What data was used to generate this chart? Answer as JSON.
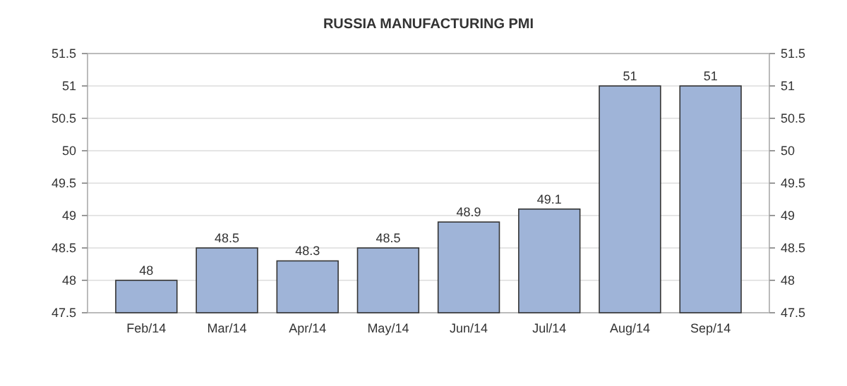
{
  "chart_data": {
    "type": "bar",
    "title": "RUSSIA MANUFACTURING PMI",
    "categories": [
      "Feb/14",
      "Mar/14",
      "Apr/14",
      "May/14",
      "Jun/14",
      "Jul/14",
      "Aug/14",
      "Sep/14"
    ],
    "values": [
      48,
      48.5,
      48.3,
      48.5,
      48.9,
      49.1,
      51,
      51
    ],
    "color": "#9fb4d8",
    "ylim": [
      47.5,
      51.5
    ],
    "yticks": [
      47.5,
      48,
      48.5,
      49,
      49.5,
      50,
      50.5,
      51,
      51.5
    ],
    "y2lim": [
      47.5,
      51.5
    ],
    "y2ticks": [
      47.5,
      48,
      48.5,
      49,
      49.5,
      50,
      50.5,
      51,
      51.5
    ],
    "grid": "y",
    "data_labels": true
  }
}
